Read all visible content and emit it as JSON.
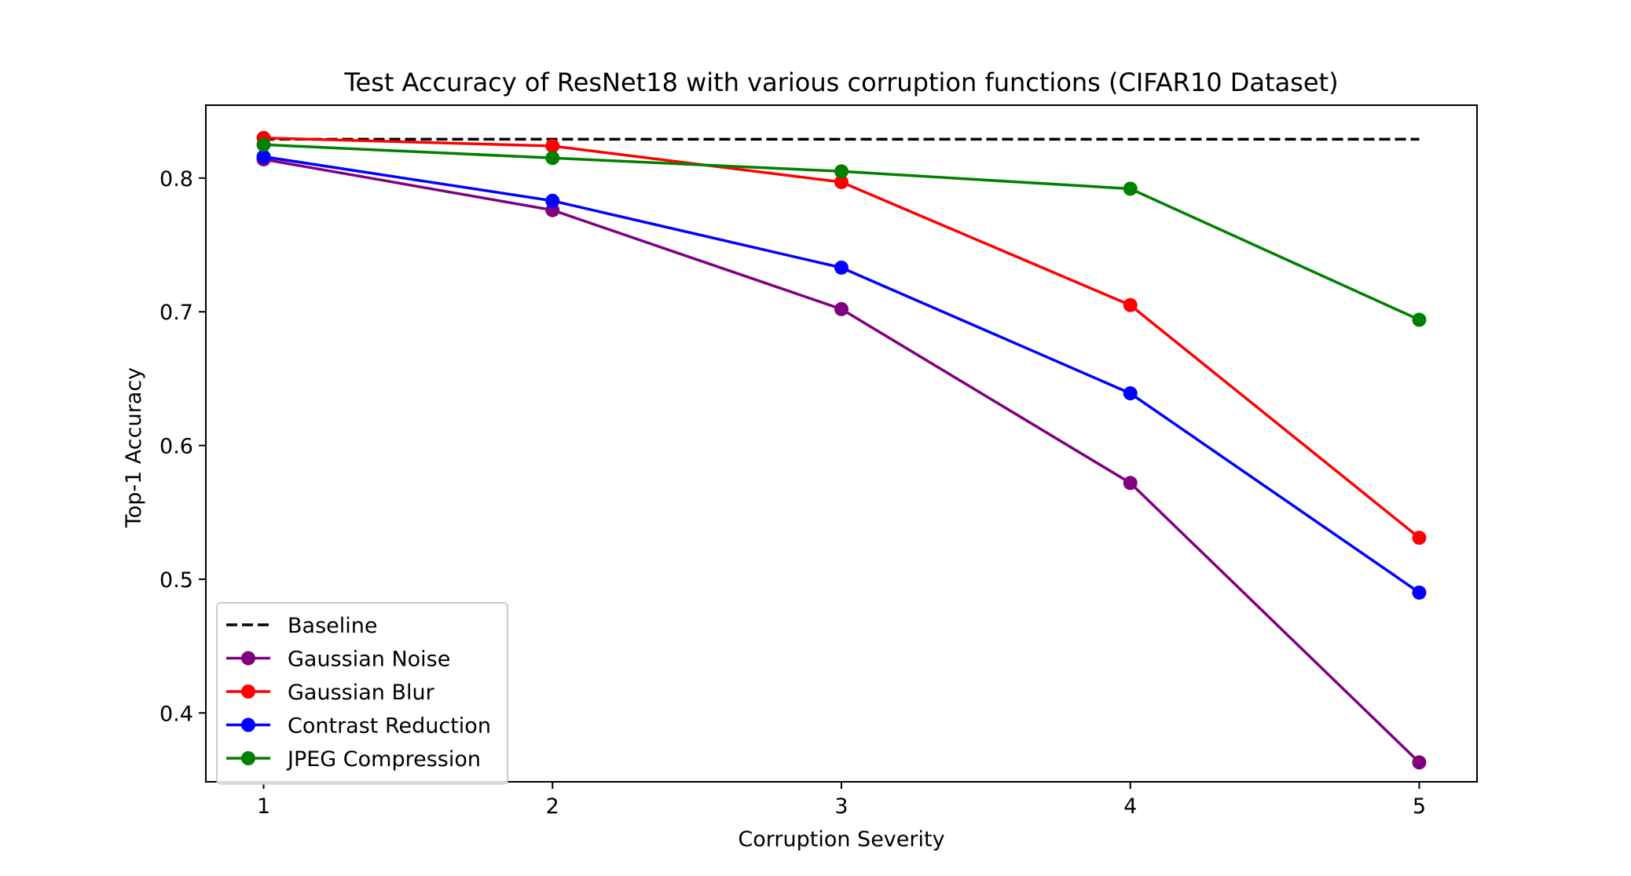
{
  "chart_data": {
    "type": "line",
    "title": "Test Accuracy of ResNet18 with various corruption functions (CIFAR10 Dataset)",
    "xlabel": "Corruption Severity",
    "ylabel": "Top-1 Accuracy",
    "x": [
      1,
      2,
      3,
      4,
      5
    ],
    "xlim": [
      0.8,
      5.2
    ],
    "ylim": [
      0.3485,
      0.8545
    ],
    "xticks": [
      1,
      2,
      3,
      4,
      5
    ],
    "xtick_labels": [
      "1",
      "2",
      "3",
      "4",
      "5"
    ],
    "yticks": [
      0.4,
      0.5,
      0.6,
      0.7,
      0.8
    ],
    "ytick_labels": [
      "0.4",
      "0.5",
      "0.6",
      "0.7",
      "0.8"
    ],
    "grid": false,
    "legend_position": "lower-left",
    "series": [
      {
        "name": "Baseline",
        "color": "#000000",
        "style": "dashed",
        "marker": "none",
        "values": [
          0.829,
          0.829,
          0.829,
          0.829,
          0.829
        ]
      },
      {
        "name": "Gaussian Noise",
        "color": "#800080",
        "style": "solid",
        "marker": "circle",
        "values": [
          0.814,
          0.776,
          0.702,
          0.572,
          0.363
        ]
      },
      {
        "name": "Gaussian Blur",
        "color": "#ff0000",
        "style": "solid",
        "marker": "circle",
        "values": [
          0.83,
          0.824,
          0.797,
          0.705,
          0.531
        ]
      },
      {
        "name": "Contrast Reduction",
        "color": "#0000ff",
        "style": "solid",
        "marker": "circle",
        "values": [
          0.816,
          0.783,
          0.733,
          0.639,
          0.49
        ]
      },
      {
        "name": "JPEG Compression",
        "color": "#008000",
        "style": "solid",
        "marker": "circle",
        "values": [
          0.825,
          0.815,
          0.805,
          0.792,
          0.694
        ]
      }
    ]
  }
}
